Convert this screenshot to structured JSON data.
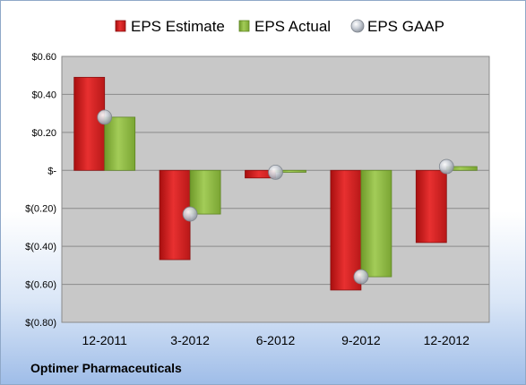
{
  "company": "Optimer Pharmaceuticals",
  "colors": {
    "estimate": "#d42020",
    "actual": "#8cbb3c",
    "gaap": "#b8bec8",
    "plot_bg": "#c8c8c8",
    "grid": "#8a8a8a"
  },
  "chart_data": {
    "type": "bar",
    "categories": [
      "12-2011",
      "3-2012",
      "6-2012",
      "9-2012",
      "12-2012"
    ],
    "series": [
      {
        "name": "EPS Estimate",
        "marker": "bar",
        "values": [
          0.49,
          -0.47,
          -0.04,
          -0.63,
          -0.38
        ]
      },
      {
        "name": "EPS Actual",
        "marker": "bar",
        "values": [
          0.28,
          -0.23,
          -0.01,
          -0.56,
          0.02
        ]
      },
      {
        "name": "EPS GAAP",
        "marker": "point",
        "values": [
          0.28,
          -0.23,
          -0.01,
          -0.56,
          0.02
        ]
      }
    ],
    "ylim": [
      -0.8,
      0.6
    ],
    "yticks": [
      0.6,
      0.4,
      0.2,
      0,
      -0.2,
      -0.4,
      -0.6,
      -0.8
    ],
    "ytick_labels": [
      "$0.60",
      "$0.40",
      "$0.20",
      "$-",
      "$(0.20)",
      "$(0.40)",
      "$(0.60)",
      "$(0.80)"
    ],
    "grid": true,
    "legend": "top"
  }
}
